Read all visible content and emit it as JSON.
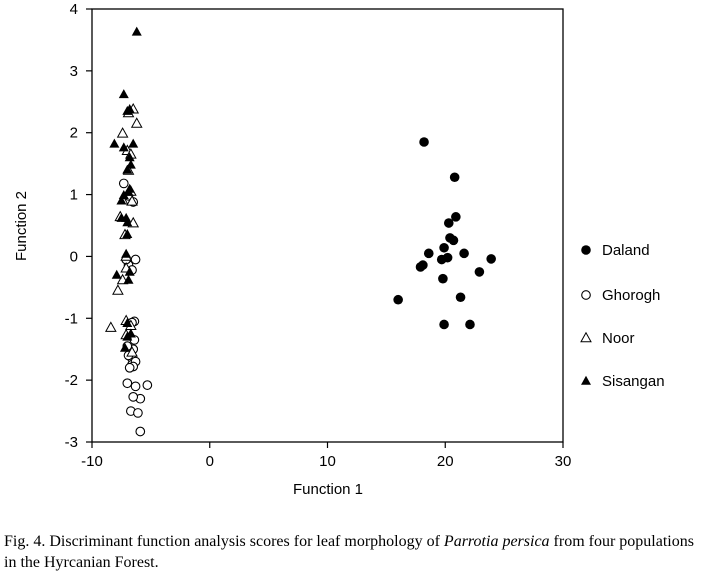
{
  "caption": {
    "before": "Fig. 4. Discriminant function analysis scores for leaf morphology of ",
    "species": "Parrotia persica",
    "after": " from four populations in the Hyrcanian Forest."
  },
  "chart_data": {
    "type": "scatter",
    "title": "",
    "xlabel": "Function 1",
    "ylabel": "Function 2",
    "xlim": [
      -10,
      30
    ],
    "ylim": [
      -3,
      4
    ],
    "xticks": [
      -10,
      0,
      10,
      20,
      30
    ],
    "yticks": [
      -3,
      -2,
      -1,
      0,
      1,
      2,
      3,
      4
    ],
    "grid": false,
    "legend_position": "right",
    "series": [
      {
        "name": "Daland",
        "marker": "filled-circle",
        "x": [
          18.2,
          20.8,
          20.9,
          20.3,
          20.4,
          20.7,
          19.9,
          18.6,
          21.6,
          23.9,
          19.7,
          18.1,
          17.9,
          22.9,
          19.8,
          16.0,
          21.3,
          19.9,
          22.1,
          20.2
        ],
        "y": [
          1.85,
          1.28,
          0.64,
          0.54,
          0.3,
          0.26,
          0.14,
          0.05,
          0.05,
          -0.04,
          -0.05,
          -0.14,
          -0.17,
          -0.25,
          -0.36,
          -0.7,
          -0.66,
          -1.1,
          -1.1,
          -0.02
        ]
      },
      {
        "name": "Ghorogh",
        "marker": "open-circle",
        "x": [
          -7.3,
          -6.9,
          -6.5,
          -6.3,
          -6.9,
          -6.6,
          -7.1,
          -6.4,
          -6.6,
          -6.4,
          -6.5,
          -6.6,
          -6.9,
          -7.0,
          -6.6,
          -6.3,
          -6.5,
          -6.8,
          -7.0,
          -5.3,
          -6.3,
          -5.9,
          -6.5,
          -6.7,
          -6.1,
          -5.9
        ],
        "y": [
          1.18,
          0.98,
          0.88,
          -0.05,
          -0.14,
          -0.22,
          -0.05,
          -1.05,
          -1.07,
          -1.35,
          -1.5,
          -1.65,
          -1.6,
          -1.45,
          -1.75,
          -1.7,
          -1.78,
          -1.8,
          -2.05,
          -2.08,
          -2.1,
          -2.3,
          -2.27,
          -2.5,
          -2.53,
          -2.83
        ]
      },
      {
        "name": "Noor",
        "marker": "open-triangle",
        "x": [
          -6.5,
          -6.9,
          -6.2,
          -7.4,
          -7.0,
          -6.7,
          -6.9,
          -6.7,
          -7.4,
          -6.6,
          -7.6,
          -6.5,
          -7.2,
          -7.1,
          -7.1,
          -7.8,
          -8.4,
          -7.1,
          -6.7,
          -7.1,
          -6.6,
          -7.4
        ],
        "y": [
          2.38,
          2.32,
          2.15,
          1.99,
          1.71,
          1.65,
          1.39,
          1.05,
          0.91,
          0.89,
          0.64,
          0.54,
          0.35,
          0.0,
          -0.19,
          -0.55,
          -1.15,
          -1.04,
          -1.12,
          -1.27,
          -1.55,
          -0.38
        ]
      },
      {
        "name": "Sisangan",
        "marker": "filled-triangle",
        "x": [
          -6.2,
          -7.3,
          -7.0,
          -6.8,
          -8.1,
          -6.5,
          -7.3,
          -6.8,
          -6.7,
          -7.0,
          -6.8,
          -6.9,
          -7.3,
          -7.5,
          -7.1,
          -7.0,
          -7.0,
          -7.5,
          -7.1,
          -7.9,
          -6.9,
          -6.8,
          -7.0,
          -6.7,
          -7.0,
          -7.2
        ],
        "y": [
          3.63,
          2.62,
          2.35,
          2.38,
          1.82,
          1.82,
          1.76,
          1.6,
          1.48,
          1.4,
          1.09,
          1.04,
          0.99,
          0.9,
          0.62,
          0.55,
          0.36,
          0.62,
          0.04,
          -0.3,
          -0.38,
          -0.25,
          -1.08,
          -1.25,
          -1.3,
          -1.48
        ]
      }
    ]
  }
}
